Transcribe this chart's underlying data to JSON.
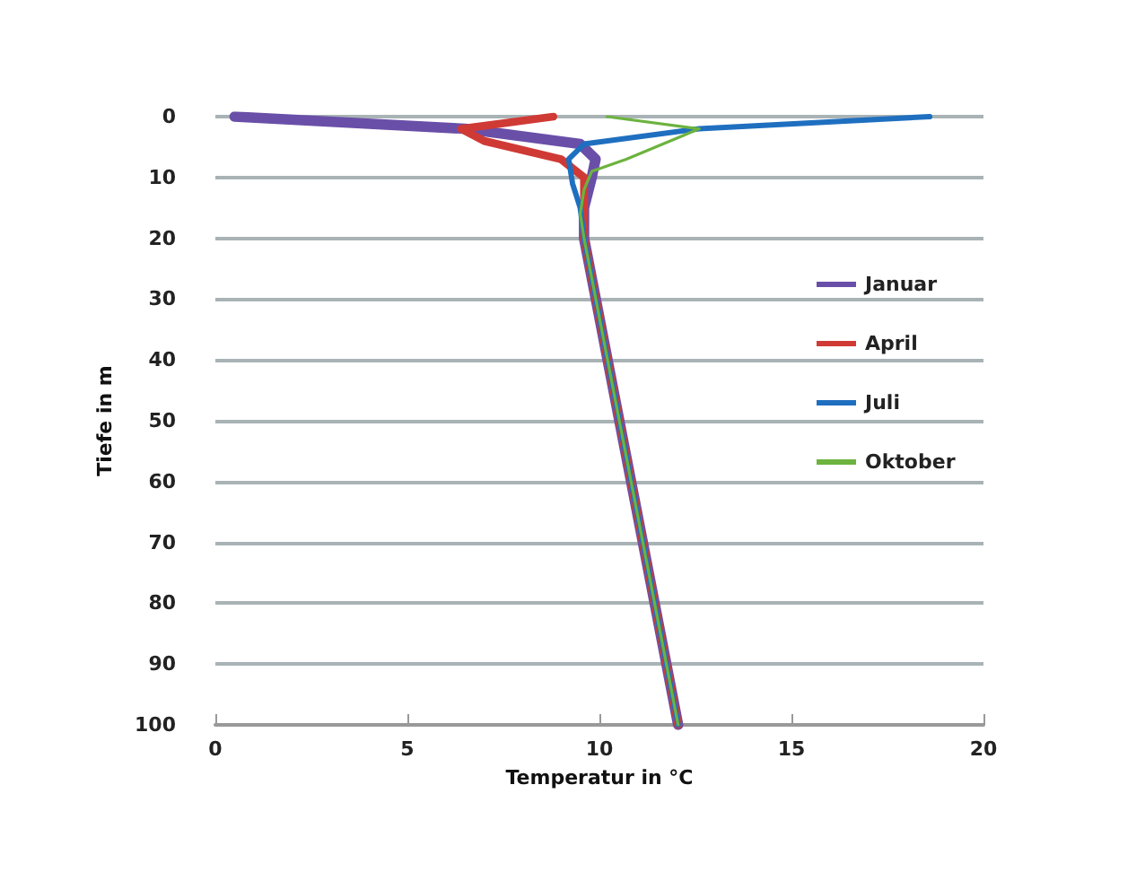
{
  "chart_data": {
    "type": "line",
    "xlabel": "Temperatur in °C",
    "ylabel": "Tiefe in m",
    "xlim": [
      0,
      20
    ],
    "xticks": [
      0,
      5,
      10,
      15,
      20
    ],
    "ylim": [
      100,
      0
    ],
    "yticks": [
      0,
      10,
      20,
      30,
      40,
      50,
      60,
      70,
      80,
      90,
      100
    ],
    "grid": "y",
    "legend": "right",
    "marker": "none",
    "line_style": "solid",
    "series": [
      {
        "name": "Januar",
        "color": "#6a4fa8",
        "x": [
          0.5,
          6.5,
          9.5,
          9.9,
          9.8,
          9.6,
          9.6,
          12.05
        ],
        "values": [
          0,
          2,
          4.5,
          7,
          10,
          15,
          20,
          100
        ]
      },
      {
        "name": "April",
        "color": "#d03a35",
        "x": [
          8.8,
          6.4,
          7,
          9,
          9.6,
          9.6,
          9.6,
          12.05
        ],
        "values": [
          0,
          2,
          4,
          7,
          10,
          15,
          20,
          100
        ]
      },
      {
        "name": "Juli",
        "color": "#1f6fc0",
        "x": [
          18.6,
          12.6,
          9.6,
          9.2,
          9.3,
          9.5,
          9.6,
          12.05
        ],
        "values": [
          0,
          2,
          4.5,
          7,
          11,
          15,
          20,
          100
        ]
      },
      {
        "name": "Oktober",
        "color": "#6cb33f",
        "x": [
          10.2,
          12.6,
          10.7,
          9.8,
          9.6,
          9.5,
          9.6,
          12.05
        ],
        "values": [
          0,
          2,
          7,
          9,
          12,
          16,
          20,
          100
        ]
      }
    ]
  }
}
